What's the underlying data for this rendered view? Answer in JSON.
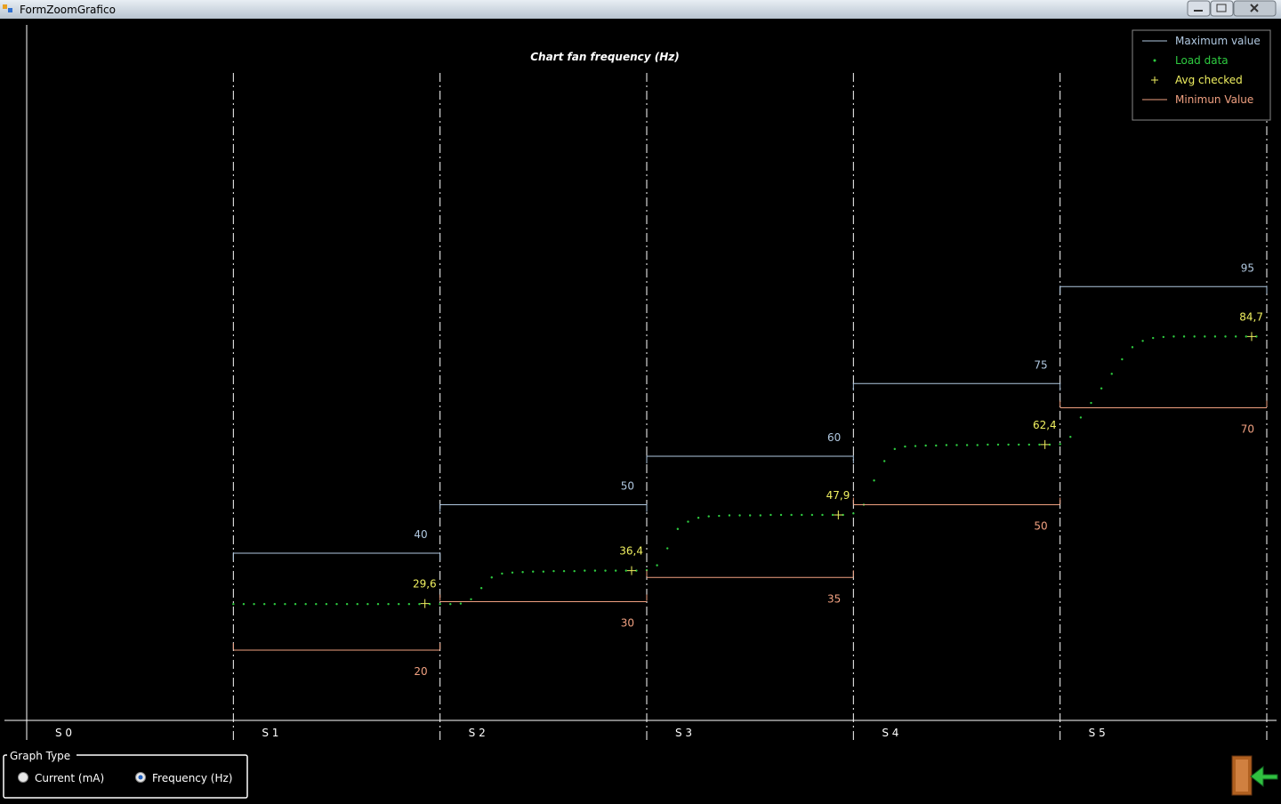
{
  "window": {
    "title": "FormZoomGrafico"
  },
  "graph_type": {
    "title": "Graph Type",
    "options": [
      "Current (mA)",
      "Frequency (Hz)"
    ],
    "selected": 1
  },
  "chart_data": {
    "type": "section-steps",
    "title": "Chart fan frequency (Hz)",
    "categories": [
      "S 0",
      "S 1",
      "S 2",
      "S 3",
      "S 4",
      "S 5"
    ],
    "xlim": [
      0,
      6
    ],
    "ylim": [
      0,
      150
    ],
    "legend": "top-right",
    "series": [
      {
        "name": "Maximum value",
        "color": "#b0c8e0",
        "kind": "section-line",
        "values": [
          null,
          40,
          50,
          60,
          75,
          95
        ]
      },
      {
        "name": "Load data",
        "color": "#2ecc40",
        "kind": "points",
        "x": [
          1.0,
          1.05,
          1.1,
          1.15,
          1.2,
          1.25,
          1.3,
          1.35,
          1.4,
          1.45,
          1.5,
          1.55,
          1.6,
          1.65,
          1.7,
          1.75,
          1.8,
          1.85,
          1.9,
          1.95,
          2.0,
          2.05,
          2.1,
          2.15,
          2.2,
          2.25,
          2.3,
          2.35,
          2.4,
          2.45,
          2.5,
          2.55,
          2.6,
          2.65,
          2.7,
          2.75,
          2.8,
          2.85,
          2.9,
          2.95,
          3.0,
          3.05,
          3.1,
          3.15,
          3.2,
          3.25,
          3.3,
          3.35,
          3.4,
          3.45,
          3.5,
          3.55,
          3.6,
          3.65,
          3.7,
          3.75,
          3.8,
          3.85,
          3.9,
          3.95,
          4.0,
          4.05,
          4.1,
          4.15,
          4.2,
          4.25,
          4.3,
          4.35,
          4.4,
          4.45,
          4.5,
          4.55,
          4.6,
          4.65,
          4.7,
          4.75,
          4.8,
          4.85,
          4.9,
          4.95,
          5.0,
          5.05,
          5.1,
          5.15,
          5.2,
          5.25,
          5.3,
          5.35,
          5.4,
          5.45,
          5.5,
          5.55,
          5.6,
          5.65,
          5.7,
          5.75,
          5.8,
          5.85,
          5.9,
          5.95
        ],
        "values": [
          29.5,
          29.5,
          29.5,
          29.5,
          29.5,
          29.5,
          29.5,
          29.5,
          29.5,
          29.5,
          29.5,
          29.5,
          29.5,
          29.5,
          29.5,
          29.5,
          29.5,
          29.5,
          29.5,
          29.5,
          29.5,
          29.5,
          29.6,
          30.5,
          32.8,
          35.0,
          35.8,
          36.0,
          36.1,
          36.2,
          36.2,
          36.3,
          36.3,
          36.3,
          36.4,
          36.4,
          36.4,
          36.4,
          36.4,
          36.4,
          36.5,
          37.5,
          41.0,
          45.0,
          46.5,
          47.3,
          47.6,
          47.7,
          47.8,
          47.8,
          47.8,
          47.8,
          47.9,
          47.9,
          47.9,
          47.9,
          47.9,
          47.9,
          47.9,
          47.9,
          48.2,
          50.0,
          55.0,
          59.0,
          61.5,
          62.0,
          62.1,
          62.2,
          62.2,
          62.3,
          62.3,
          62.3,
          62.3,
          62.4,
          62.4,
          62.4,
          62.4,
          62.4,
          62.4,
          62.4,
          62.5,
          64.0,
          68.0,
          71.0,
          74.0,
          77.0,
          80.0,
          82.5,
          83.8,
          84.4,
          84.6,
          84.7,
          84.7,
          84.7,
          84.7,
          84.7,
          84.7,
          84.7,
          84.7,
          84.7
        ]
      },
      {
        "name": "Avg checked",
        "color": "#f0f060",
        "kind": "plus",
        "values": [
          null,
          29.6,
          36.4,
          47.9,
          62.4,
          84.7
        ],
        "value_labels": [
          null,
          "29,6",
          "36,4",
          "47,9",
          "62,4",
          "84,7"
        ]
      },
      {
        "name": "Minimun Value",
        "color": "#f0a080",
        "kind": "section-line",
        "values": [
          null,
          20,
          30,
          35,
          50,
          70
        ]
      }
    ]
  }
}
